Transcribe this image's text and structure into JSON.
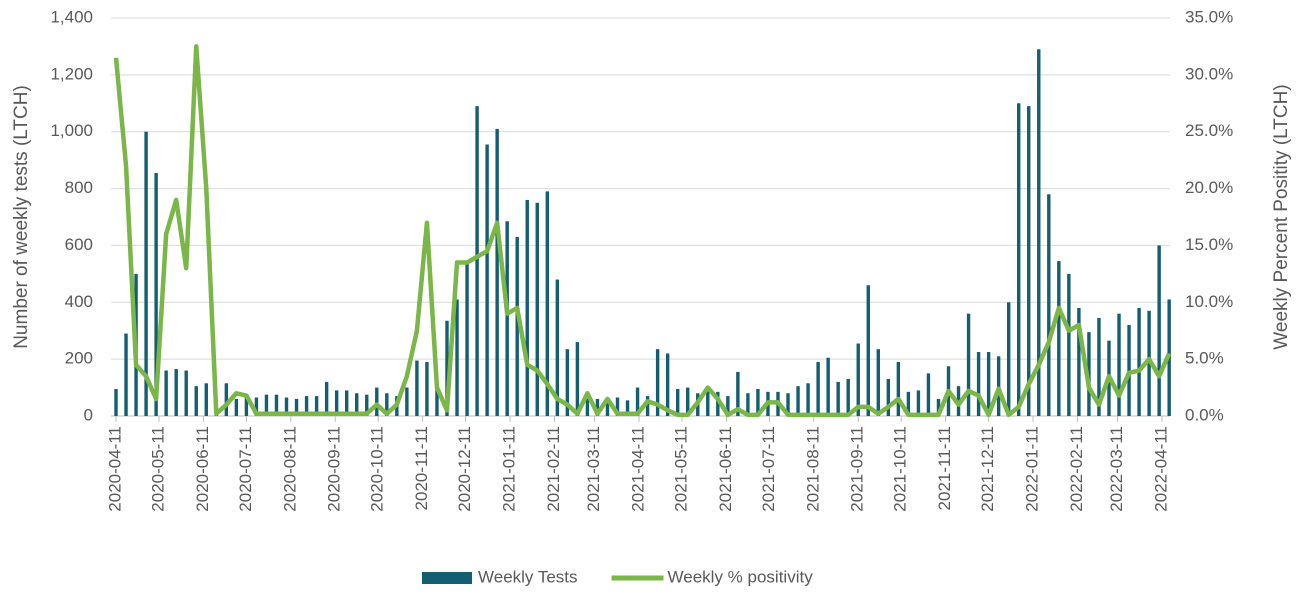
{
  "chart_data": {
    "type": "bar-line",
    "x": [
      "2020-04-11",
      "2020-04-18",
      "2020-04-25",
      "2020-05-02",
      "2020-05-09",
      "2020-05-16",
      "2020-05-23",
      "2020-05-30",
      "2020-06-06",
      "2020-06-13",
      "2020-06-20",
      "2020-06-27",
      "2020-07-04",
      "2020-07-11",
      "2020-07-18",
      "2020-07-25",
      "2020-08-01",
      "2020-08-08",
      "2020-08-15",
      "2020-08-22",
      "2020-08-29",
      "2020-09-05",
      "2020-09-12",
      "2020-09-19",
      "2020-09-26",
      "2020-10-03",
      "2020-10-10",
      "2020-10-17",
      "2020-10-24",
      "2020-10-31",
      "2020-11-07",
      "2020-11-14",
      "2020-11-21",
      "2020-11-28",
      "2020-12-05",
      "2020-12-12",
      "2020-12-19",
      "2020-12-26",
      "2021-01-02",
      "2021-01-09",
      "2021-01-16",
      "2021-01-23",
      "2021-01-30",
      "2021-02-06",
      "2021-02-13",
      "2021-02-20",
      "2021-02-27",
      "2021-03-06",
      "2021-03-13",
      "2021-03-20",
      "2021-03-27",
      "2021-04-03",
      "2021-04-10",
      "2021-04-17",
      "2021-04-24",
      "2021-05-01",
      "2021-05-08",
      "2021-05-15",
      "2021-05-22",
      "2021-05-29",
      "2021-06-05",
      "2021-06-12",
      "2021-06-19",
      "2021-06-26",
      "2021-07-03",
      "2021-07-10",
      "2021-07-17",
      "2021-07-24",
      "2021-07-31",
      "2021-08-07",
      "2021-08-14",
      "2021-08-21",
      "2021-08-28",
      "2021-09-04",
      "2021-09-11",
      "2021-09-18",
      "2021-09-25",
      "2021-10-02",
      "2021-10-09",
      "2021-10-16",
      "2021-10-23",
      "2021-10-30",
      "2021-11-06",
      "2021-11-13",
      "2021-11-20",
      "2021-11-27",
      "2021-12-04",
      "2021-12-11",
      "2021-12-18",
      "2021-12-25",
      "2022-01-01",
      "2022-01-08",
      "2022-01-15",
      "2022-01-22",
      "2022-01-29",
      "2022-02-05",
      "2022-02-12",
      "2022-02-19",
      "2022-02-26",
      "2022-03-05",
      "2022-03-12",
      "2022-03-19",
      "2022-03-26",
      "2022-04-02",
      "2022-04-09",
      "2022-04-16"
    ],
    "series": [
      {
        "name": "Weekly Tests",
        "type": "bar",
        "color": "#135e70",
        "values": [
          95,
          290,
          500,
          1000,
          855,
          160,
          165,
          160,
          105,
          115,
          20,
          115,
          60,
          70,
          65,
          75,
          75,
          65,
          60,
          70,
          70,
          120,
          90,
          90,
          80,
          75,
          100,
          80,
          70,
          100,
          195,
          190,
          110,
          335,
          410,
          540,
          1090,
          955,
          1010,
          685,
          630,
          760,
          750,
          790,
          480,
          235,
          260,
          70,
          60,
          65,
          65,
          55,
          100,
          70,
          235,
          220,
          95,
          100,
          80,
          95,
          85,
          70,
          155,
          80,
          95,
          85,
          85,
          80,
          105,
          115,
          190,
          205,
          120,
          130,
          255,
          460,
          235,
          130,
          190,
          85,
          90,
          150,
          60,
          175,
          105,
          360,
          225,
          225,
          210,
          400,
          1100,
          1090,
          1290,
          780,
          545,
          500,
          380,
          295,
          345,
          265,
          360,
          320,
          380,
          370,
          600,
          410
        ]
      },
      {
        "name": "Weekly % positivity",
        "type": "line",
        "axis": "y2",
        "color": "#7ab648",
        "values": [
          31.5,
          22,
          4.5,
          3.5,
          1.5,
          16,
          19,
          13,
          32.5,
          20,
          0.2,
          1,
          2,
          1.8,
          0.2,
          0.2,
          0.2,
          0.2,
          0.2,
          0.2,
          0.2,
          0.2,
          0.2,
          0.2,
          0.2,
          0.2,
          1,
          0.2,
          1,
          3.5,
          7.5,
          17,
          2.5,
          0.5,
          13.5,
          13.5,
          14,
          14.5,
          17,
          9,
          9.5,
          4.5,
          4,
          2.8,
          1.5,
          1,
          0.2,
          2,
          0.2,
          1.5,
          0.2,
          0.2,
          0.2,
          1.3,
          1,
          0.5,
          0.1,
          0.1,
          1.2,
          2.5,
          1.5,
          0.1,
          0.6,
          0.1,
          0.1,
          1.2,
          1.2,
          0.1,
          0.1,
          0.1,
          0.1,
          0.1,
          0.1,
          0.1,
          0.8,
          0.8,
          0.2,
          0.8,
          1.5,
          0.1,
          0.1,
          0.1,
          0.1,
          2.2,
          1,
          2.2,
          1.8,
          0.1,
          2.4,
          0.1,
          0.8,
          2.8,
          4.5,
          6.5,
          9.5,
          7.5,
          8,
          2.5,
          1,
          3.5,
          1.8,
          3.8,
          4,
          5,
          3.5,
          5.5
        ]
      }
    ],
    "y_label": "Number of weekly tests (LTCH)",
    "y2_label": "Weekly Percent Positity (LTCH)",
    "ylim": [
      0,
      1400
    ],
    "yticks": [
      0,
      200,
      400,
      600,
      800,
      {
        "value": 1000,
        "label": "1,000"
      },
      {
        "value": 1200,
        "label": "1,200"
      },
      {
        "value": 1400,
        "label": "1,400"
      }
    ],
    "y2lim": [
      0,
      35
    ],
    "y2ticks": [
      {
        "value": 0,
        "label": "0.0%"
      },
      {
        "value": 5,
        "label": "5.0%"
      },
      {
        "value": 10,
        "label": "10.0%"
      },
      {
        "value": 15,
        "label": "15.0%"
      },
      {
        "value": 20,
        "label": "20.0%"
      },
      {
        "value": 25,
        "label": "25.0%"
      },
      {
        "value": 30,
        "label": "30.0%"
      },
      {
        "value": 35,
        "label": "35.0%"
      }
    ],
    "xticks": [
      "2020-04-11",
      "2020-05-11",
      "2020-06-11",
      "2020-07-11",
      "2020-08-11",
      "2020-09-11",
      "2020-10-11",
      "2020-11-11",
      "2020-12-11",
      "2021-01-11",
      "2021-02-11",
      "2021-03-11",
      "2021-04-11",
      "2021-05-11",
      "2021-06-11",
      "2021-07-11",
      "2021-08-11",
      "2021-09-11",
      "2021-10-11",
      "2021-11-11",
      "2021-12-11",
      "2022-01-11",
      "2022-02-11",
      "2022-03-11",
      "2022-04-11"
    ],
    "grid": true,
    "legend": "bottom"
  }
}
